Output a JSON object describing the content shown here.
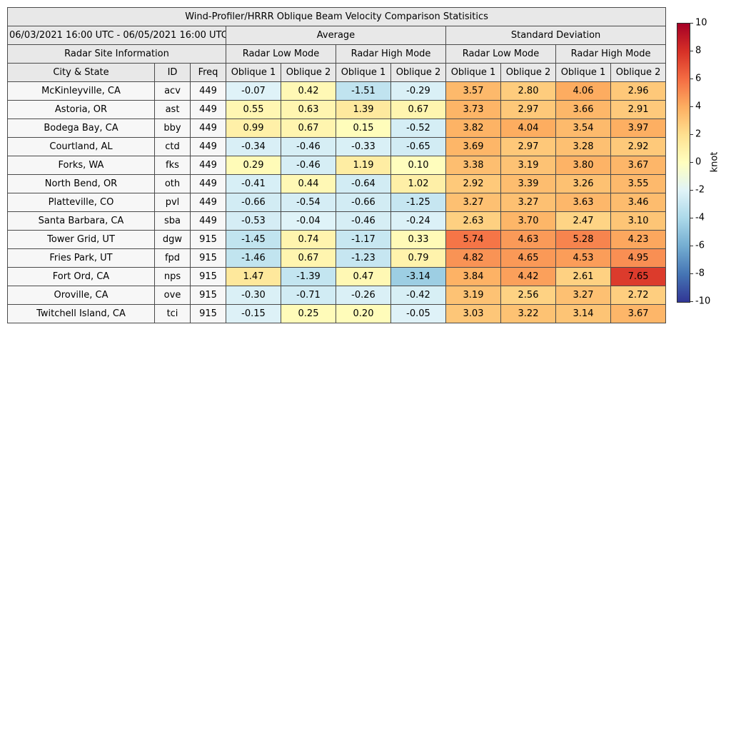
{
  "chart_data": {
    "type": "heatmap",
    "title": "Wind-Profiler/HRRR Oblique Beam Velocity Comparison Statisitics",
    "date_range": "06/03/2021 16:00 UTC - 06/05/2021 16:00 UTC",
    "groups": {
      "average": "Average",
      "stddev": "Standard Deviation"
    },
    "site_info_label": "Radar Site Information",
    "mode_labels": {
      "low": "Radar Low Mode",
      "high": "Radar High Mode"
    },
    "site_columns": {
      "city": "City & State",
      "id": "ID",
      "freq": "Freq"
    },
    "oblique_labels": {
      "o1": "Oblique 1",
      "o2": "Oblique 2"
    },
    "value_columns": [
      {
        "group": "Average",
        "mode": "Radar Low Mode",
        "oblique": "Oblique 1"
      },
      {
        "group": "Average",
        "mode": "Radar Low Mode",
        "oblique": "Oblique 2"
      },
      {
        "group": "Average",
        "mode": "Radar High Mode",
        "oblique": "Oblique 1"
      },
      {
        "group": "Average",
        "mode": "Radar High Mode",
        "oblique": "Oblique 2"
      },
      {
        "group": "Standard Deviation",
        "mode": "Radar Low Mode",
        "oblique": "Oblique 1"
      },
      {
        "group": "Standard Deviation",
        "mode": "Radar Low Mode",
        "oblique": "Oblique 2"
      },
      {
        "group": "Standard Deviation",
        "mode": "Radar High Mode",
        "oblique": "Oblique 1"
      },
      {
        "group": "Standard Deviation",
        "mode": "Radar High Mode",
        "oblique": "Oblique 2"
      }
    ],
    "rows": [
      {
        "city": "McKinleyville, CA",
        "id": "acv",
        "freq": "449",
        "values": [
          -0.07,
          0.42,
          -1.51,
          -0.29,
          3.57,
          2.8,
          4.06,
          2.96
        ]
      },
      {
        "city": "Astoria, OR",
        "id": "ast",
        "freq": "449",
        "values": [
          0.55,
          0.63,
          1.39,
          0.67,
          3.73,
          2.97,
          3.66,
          2.91
        ]
      },
      {
        "city": "Bodega Bay, CA",
        "id": "bby",
        "freq": "449",
        "values": [
          0.99,
          0.67,
          0.15,
          -0.52,
          3.82,
          4.04,
          3.54,
          3.97
        ]
      },
      {
        "city": "Courtland, AL",
        "id": "ctd",
        "freq": "449",
        "values": [
          -0.34,
          -0.46,
          -0.33,
          -0.65,
          3.69,
          2.97,
          3.28,
          2.92
        ]
      },
      {
        "city": "Forks, WA",
        "id": "fks",
        "freq": "449",
        "values": [
          0.29,
          -0.46,
          1.19,
          0.1,
          3.38,
          3.19,
          3.8,
          3.67
        ]
      },
      {
        "city": "North Bend, OR",
        "id": "oth",
        "freq": "449",
        "values": [
          -0.41,
          0.44,
          -0.64,
          1.02,
          2.92,
          3.39,
          3.26,
          3.55
        ]
      },
      {
        "city": "Platteville, CO",
        "id": "pvl",
        "freq": "449",
        "values": [
          -0.66,
          -0.54,
          -0.66,
          -1.25,
          3.27,
          3.27,
          3.63,
          3.46
        ]
      },
      {
        "city": "Santa Barbara, CA",
        "id": "sba",
        "freq": "449",
        "values": [
          -0.53,
          -0.04,
          -0.46,
          -0.24,
          2.63,
          3.7,
          2.47,
          3.1
        ]
      },
      {
        "city": "Tower Grid, UT",
        "id": "dgw",
        "freq": "915",
        "values": [
          -1.45,
          0.74,
          -1.17,
          0.33,
          5.74,
          4.63,
          5.28,
          4.23
        ]
      },
      {
        "city": "Fries Park, UT",
        "id": "fpd",
        "freq": "915",
        "values": [
          -1.46,
          0.67,
          -1.23,
          0.79,
          4.82,
          4.65,
          4.53,
          4.95
        ]
      },
      {
        "city": "Fort Ord, CA",
        "id": "nps",
        "freq": "915",
        "values": [
          1.47,
          -1.39,
          0.47,
          -3.14,
          3.84,
          4.42,
          2.61,
          7.65
        ]
      },
      {
        "city": "Oroville, CA",
        "id": "ove",
        "freq": "915",
        "values": [
          -0.3,
          -0.71,
          -0.26,
          -0.42,
          3.19,
          2.56,
          3.27,
          2.72
        ]
      },
      {
        "city": "Twitchell Island, CA",
        "id": "tci",
        "freq": "915",
        "values": [
          -0.15,
          0.25,
          0.2,
          -0.05,
          3.03,
          3.22,
          3.14,
          3.67
        ]
      }
    ],
    "colorbar": {
      "label": "knot",
      "min": -10,
      "max": 10,
      "ticks": [
        10,
        8,
        6,
        4,
        2,
        0,
        -2,
        -4,
        -6,
        -8,
        -10
      ],
      "gradient_top_to_bottom": [
        "#a50026",
        "#d73027",
        "#f46d43",
        "#fdae61",
        "#fee090",
        "#ffffbf",
        "#e0f3f8",
        "#abd9e9",
        "#74add1",
        "#4575b4",
        "#313695"
      ]
    }
  },
  "colors": {
    "header_bg": "#e8e8e8",
    "site_cell_bg": "#f7f7f7",
    "border": "#4a4a4a",
    "scale_negative": [
      {
        "v": -10,
        "c": "#313695"
      },
      {
        "v": -7.5,
        "c": "#4575b4"
      },
      {
        "v": -5,
        "c": "#74add1"
      },
      {
        "v": -2.5,
        "c": "#abd9e9"
      },
      {
        "v": 0,
        "c": "#e0f3f8"
      }
    ],
    "scale_positive": [
      {
        "v": 0,
        "c": "#ffffbf"
      },
      {
        "v": 2,
        "c": "#fee090"
      },
      {
        "v": 4,
        "c": "#fdae61"
      },
      {
        "v": 6,
        "c": "#f46d43"
      },
      {
        "v": 8,
        "c": "#d73027"
      },
      {
        "v": 10,
        "c": "#a50026"
      }
    ]
  }
}
